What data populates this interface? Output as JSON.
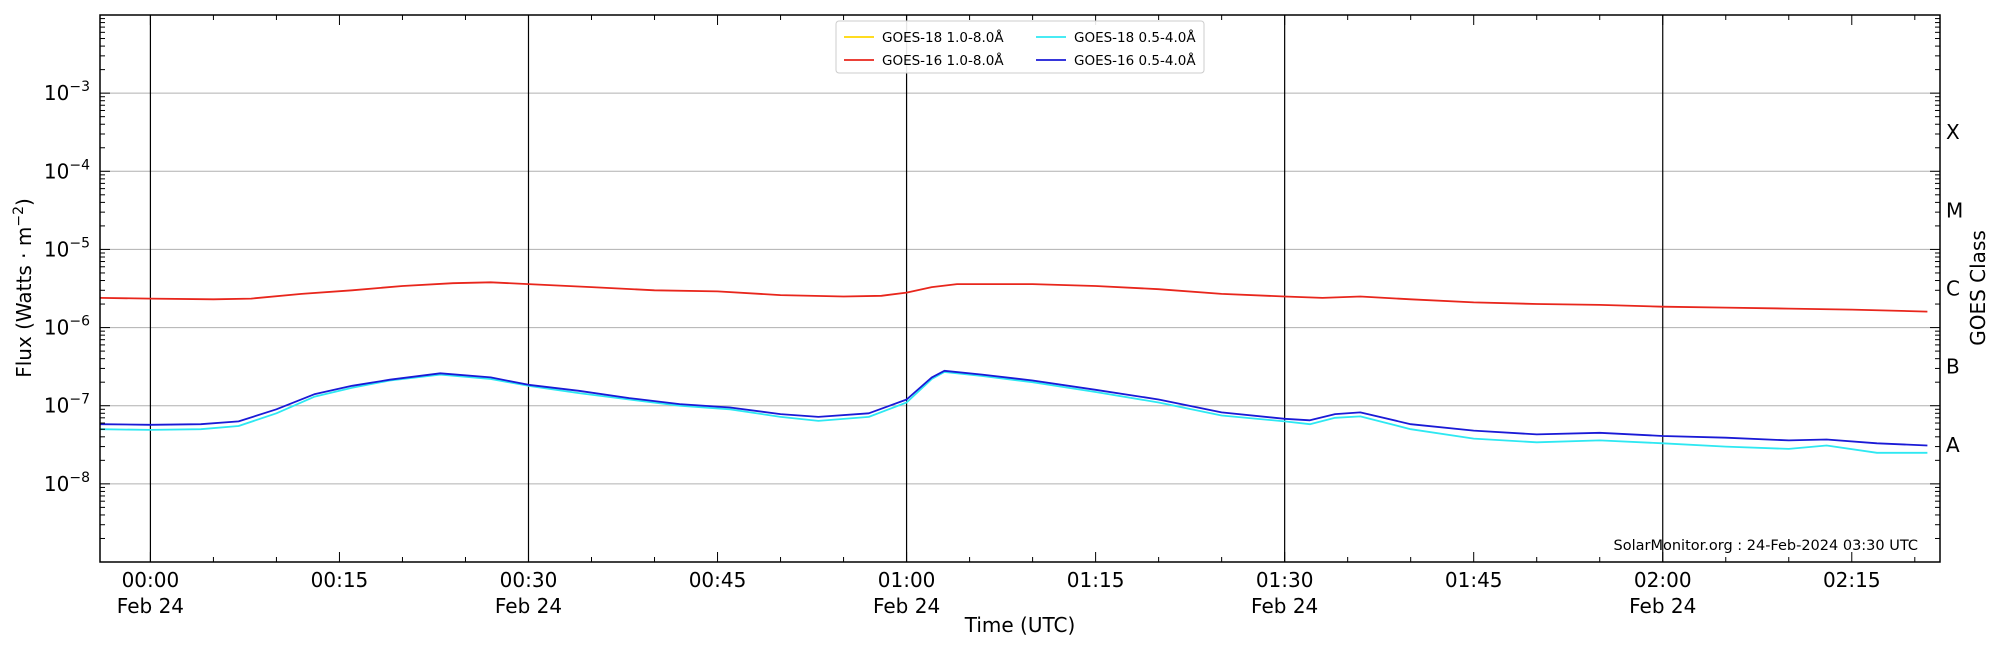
{
  "chart_data": {
    "type": "line",
    "title": "",
    "xlabel": "Time (UTC)",
    "ylabel": "Flux (Watts · m",
    "ylabel_sup": "−2",
    "ylabel_close": ")",
    "right_axis_label": "GOES Class",
    "y_scale": "log",
    "ylim": [
      1e-09,
      0.01
    ],
    "y_ticks": [
      {
        "exp": -8,
        "base": "10",
        "sup": "−8"
      },
      {
        "exp": -7,
        "base": "10",
        "sup": "−7"
      },
      {
        "exp": -6,
        "base": "10",
        "sup": "−6"
      },
      {
        "exp": -5,
        "base": "10",
        "sup": "−5"
      },
      {
        "exp": -4,
        "base": "10",
        "sup": "−4"
      },
      {
        "exp": -3,
        "base": "10",
        "sup": "−3"
      }
    ],
    "goes_classes": [
      {
        "label": "A",
        "exp": -7.5
      },
      {
        "label": "B",
        "exp": -6.5
      },
      {
        "label": "C",
        "exp": -5.5
      },
      {
        "label": "M",
        "exp": -4.5
      },
      {
        "label": "X",
        "exp": -3.5
      }
    ],
    "xlim": [
      "2024-02-23 23:56",
      "2024-02-24 02:22"
    ],
    "x_ticks": [
      {
        "time": "2024-02-24 00:00",
        "label": "00:00",
        "date": "Feb 24"
      },
      {
        "time": "2024-02-24 00:15",
        "label": "00:15",
        "date": ""
      },
      {
        "time": "2024-02-24 00:30",
        "label": "00:30",
        "date": "Feb 24"
      },
      {
        "time": "2024-02-24 00:45",
        "label": "00:45",
        "date": ""
      },
      {
        "time": "2024-02-24 01:00",
        "label": "01:00",
        "date": "Feb 24"
      },
      {
        "time": "2024-02-24 01:15",
        "label": "01:15",
        "date": ""
      },
      {
        "time": "2024-02-24 01:30",
        "label": "01:30",
        "date": "Feb 24"
      },
      {
        "time": "2024-02-24 01:45",
        "label": "01:45",
        "date": ""
      },
      {
        "time": "2024-02-24 02:00",
        "label": "02:00",
        "date": "Feb 24"
      },
      {
        "time": "2024-02-24 02:15",
        "label": "02:15",
        "date": ""
      }
    ],
    "day_lines": [
      "2024-02-24 00:00",
      "2024-02-24 00:30",
      "2024-02-24 01:00",
      "2024-02-24 01:30",
      "2024-02-24 02:00"
    ],
    "grid": "horizontal at decades",
    "legend": {
      "position": "top-center",
      "columns": 2
    },
    "annotation": "SolarMonitor.org : 24-Feb-2024 03:30 UTC",
    "series": [
      {
        "name": "GOES-18 1.0-8.0Å",
        "color": "#ffd700",
        "points": []
      },
      {
        "name": "GOES-16 1.0-8.0Å",
        "color": "#e8261c",
        "points": [
          [
            "2024-02-23 23:56",
            2.4e-06
          ],
          [
            "2024-02-24 00:00",
            2.35e-06
          ],
          [
            "2024-02-24 00:05",
            2.3e-06
          ],
          [
            "2024-02-24 00:08",
            2.35e-06
          ],
          [
            "2024-02-24 00:12",
            2.7e-06
          ],
          [
            "2024-02-24 00:16",
            3e-06
          ],
          [
            "2024-02-24 00:20",
            3.4e-06
          ],
          [
            "2024-02-24 00:24",
            3.7e-06
          ],
          [
            "2024-02-24 00:27",
            3.8e-06
          ],
          [
            "2024-02-24 00:30",
            3.6e-06
          ],
          [
            "2024-02-24 00:35",
            3.3e-06
          ],
          [
            "2024-02-24 00:40",
            3e-06
          ],
          [
            "2024-02-24 00:45",
            2.9e-06
          ],
          [
            "2024-02-24 00:50",
            2.6e-06
          ],
          [
            "2024-02-24 00:55",
            2.5e-06
          ],
          [
            "2024-02-24 00:58",
            2.55e-06
          ],
          [
            "2024-02-24 01:00",
            2.8e-06
          ],
          [
            "2024-02-24 01:02",
            3.3e-06
          ],
          [
            "2024-02-24 01:04",
            3.6e-06
          ],
          [
            "2024-02-24 01:10",
            3.6e-06
          ],
          [
            "2024-02-24 01:15",
            3.4e-06
          ],
          [
            "2024-02-24 01:20",
            3.1e-06
          ],
          [
            "2024-02-24 01:25",
            2.7e-06
          ],
          [
            "2024-02-24 01:30",
            2.5e-06
          ],
          [
            "2024-02-24 01:33",
            2.4e-06
          ],
          [
            "2024-02-24 01:36",
            2.5e-06
          ],
          [
            "2024-02-24 01:40",
            2.3e-06
          ],
          [
            "2024-02-24 01:45",
            2.1e-06
          ],
          [
            "2024-02-24 01:50",
            2e-06
          ],
          [
            "2024-02-24 01:55",
            1.95e-06
          ],
          [
            "2024-02-24 02:00",
            1.85e-06
          ],
          [
            "2024-02-24 02:05",
            1.8e-06
          ],
          [
            "2024-02-24 02:10",
            1.75e-06
          ],
          [
            "2024-02-24 02:15",
            1.7e-06
          ],
          [
            "2024-02-24 02:21",
            1.6e-06
          ]
        ]
      },
      {
        "name": "GOES-18 0.5-4.0Å",
        "color": "#2ee8f2",
        "points": [
          [
            "2024-02-23 23:56",
            5e-08
          ],
          [
            "2024-02-24 00:00",
            4.9e-08
          ],
          [
            "2024-02-24 00:04",
            5e-08
          ],
          [
            "2024-02-24 00:07",
            5.5e-08
          ],
          [
            "2024-02-24 00:10",
            8e-08
          ],
          [
            "2024-02-24 00:13",
            1.3e-07
          ],
          [
            "2024-02-24 00:16",
            1.7e-07
          ],
          [
            "2024-02-24 00:19",
            2.1e-07
          ],
          [
            "2024-02-24 00:23",
            2.5e-07
          ],
          [
            "2024-02-24 00:27",
            2.2e-07
          ],
          [
            "2024-02-24 00:30",
            1.8e-07
          ],
          [
            "2024-02-24 00:34",
            1.45e-07
          ],
          [
            "2024-02-24 00:38",
            1.2e-07
          ],
          [
            "2024-02-24 00:42",
            1e-07
          ],
          [
            "2024-02-24 00:46",
            9e-08
          ],
          [
            "2024-02-24 00:50",
            7.2e-08
          ],
          [
            "2024-02-24 00:53",
            6.4e-08
          ],
          [
            "2024-02-24 00:57",
            7.2e-08
          ],
          [
            "2024-02-24 01:00",
            1.1e-07
          ],
          [
            "2024-02-24 01:02",
            2.2e-07
          ],
          [
            "2024-02-24 01:03",
            2.7e-07
          ],
          [
            "2024-02-24 01:06",
            2.4e-07
          ],
          [
            "2024-02-24 01:10",
            2e-07
          ],
          [
            "2024-02-24 01:15",
            1.5e-07
          ],
          [
            "2024-02-24 01:20",
            1.1e-07
          ],
          [
            "2024-02-24 01:25",
            7.5e-08
          ],
          [
            "2024-02-24 01:30",
            6.3e-08
          ],
          [
            "2024-02-24 01:32",
            5.8e-08
          ],
          [
            "2024-02-24 01:34",
            7e-08
          ],
          [
            "2024-02-24 01:36",
            7.3e-08
          ],
          [
            "2024-02-24 01:40",
            5e-08
          ],
          [
            "2024-02-24 01:45",
            3.8e-08
          ],
          [
            "2024-02-24 01:50",
            3.4e-08
          ],
          [
            "2024-02-24 01:55",
            3.6e-08
          ],
          [
            "2024-02-24 02:00",
            3.3e-08
          ],
          [
            "2024-02-24 02:05",
            3e-08
          ],
          [
            "2024-02-24 02:10",
            2.8e-08
          ],
          [
            "2024-02-24 02:13",
            3.1e-08
          ],
          [
            "2024-02-24 02:17",
            2.5e-08
          ],
          [
            "2024-02-24 02:21",
            2.5e-08
          ]
        ]
      },
      {
        "name": "GOES-16 0.5-4.0Å",
        "color": "#1a1ad6",
        "points": [
          [
            "2024-02-23 23:56",
            5.8e-08
          ],
          [
            "2024-02-24 00:00",
            5.7e-08
          ],
          [
            "2024-02-24 00:04",
            5.8e-08
          ],
          [
            "2024-02-24 00:07",
            6.3e-08
          ],
          [
            "2024-02-24 00:10",
            9e-08
          ],
          [
            "2024-02-24 00:13",
            1.4e-07
          ],
          [
            "2024-02-24 00:16",
            1.8e-07
          ],
          [
            "2024-02-24 00:19",
            2.15e-07
          ],
          [
            "2024-02-24 00:23",
            2.6e-07
          ],
          [
            "2024-02-24 00:27",
            2.3e-07
          ],
          [
            "2024-02-24 00:30",
            1.85e-07
          ],
          [
            "2024-02-24 00:34",
            1.55e-07
          ],
          [
            "2024-02-24 00:38",
            1.25e-07
          ],
          [
            "2024-02-24 00:42",
            1.05e-07
          ],
          [
            "2024-02-24 00:46",
            9.5e-08
          ],
          [
            "2024-02-24 00:50",
            7.8e-08
          ],
          [
            "2024-02-24 00:53",
            7.2e-08
          ],
          [
            "2024-02-24 00:57",
            8e-08
          ],
          [
            "2024-02-24 01:00",
            1.2e-07
          ],
          [
            "2024-02-24 01:02",
            2.3e-07
          ],
          [
            "2024-02-24 01:03",
            2.8e-07
          ],
          [
            "2024-02-24 01:06",
            2.5e-07
          ],
          [
            "2024-02-24 01:10",
            2.1e-07
          ],
          [
            "2024-02-24 01:15",
            1.6e-07
          ],
          [
            "2024-02-24 01:20",
            1.2e-07
          ],
          [
            "2024-02-24 01:25",
            8.2e-08
          ],
          [
            "2024-02-24 01:30",
            6.8e-08
          ],
          [
            "2024-02-24 01:32",
            6.5e-08
          ],
          [
            "2024-02-24 01:34",
            7.8e-08
          ],
          [
            "2024-02-24 01:36",
            8.2e-08
          ],
          [
            "2024-02-24 01:40",
            5.8e-08
          ],
          [
            "2024-02-24 01:45",
            4.8e-08
          ],
          [
            "2024-02-24 01:50",
            4.3e-08
          ],
          [
            "2024-02-24 01:55",
            4.5e-08
          ],
          [
            "2024-02-24 02:00",
            4.1e-08
          ],
          [
            "2024-02-24 02:05",
            3.9e-08
          ],
          [
            "2024-02-24 02:10",
            3.6e-08
          ],
          [
            "2024-02-24 02:13",
            3.7e-08
          ],
          [
            "2024-02-24 02:17",
            3.3e-08
          ],
          [
            "2024-02-24 02:21",
            3.1e-08
          ]
        ]
      }
    ]
  }
}
